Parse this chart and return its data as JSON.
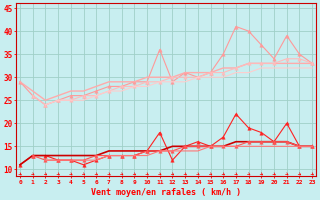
{
  "xlabel": "Vent moyen/en rafales ( km/h )",
  "bg_color": "#c8eef0",
  "grid_color": "#a0d0c8",
  "x": [
    0,
    1,
    2,
    3,
    4,
    5,
    6,
    7,
    8,
    9,
    10,
    11,
    12,
    13,
    14,
    15,
    16,
    17,
    18,
    19,
    20,
    21,
    22,
    23
  ],
  "lines": [
    {
      "y": [
        29,
        26,
        24,
        25,
        26,
        26,
        27,
        28,
        28,
        29,
        29,
        36,
        29,
        31,
        30,
        31,
        35,
        41,
        40,
        37,
        34,
        39,
        35,
        33
      ],
      "color": "#ff9999",
      "lw": 0.8,
      "marker": "^",
      "ms": 2.5
    },
    {
      "y": [
        29,
        27,
        25,
        26,
        27,
        27,
        28,
        29,
        29,
        29,
        30,
        30,
        30,
        31,
        31,
        31,
        32,
        32,
        33,
        33,
        33,
        33,
        33,
        33
      ],
      "color": "#ffaaaa",
      "lw": 1.0,
      "marker": null,
      "ms": 0
    },
    {
      "y": [
        null,
        26,
        24,
        25,
        25,
        26,
        26,
        27,
        28,
        28,
        29,
        29,
        30,
        30,
        30,
        31,
        31,
        32,
        33,
        33,
        33,
        34,
        34,
        33
      ],
      "color": "#ffbbbb",
      "lw": 0.8,
      "marker": "^",
      "ms": 2.5
    },
    {
      "y": [
        null,
        null,
        24,
        25,
        25,
        25,
        26,
        27,
        27,
        28,
        28,
        29,
        29,
        29,
        30,
        30,
        30,
        31,
        31,
        32,
        32,
        32,
        32,
        32
      ],
      "color": "#ffcccc",
      "lw": 0.8,
      "marker": null,
      "ms": 0
    },
    {
      "y": [
        11,
        13,
        13,
        12,
        12,
        11,
        12,
        13,
        13,
        13,
        14,
        18,
        12,
        15,
        16,
        15,
        17,
        22,
        19,
        18,
        16,
        20,
        15,
        15
      ],
      "color": "#ff2222",
      "lw": 0.8,
      "marker": "^",
      "ms": 2.5
    },
    {
      "y": [
        11,
        13,
        13,
        13,
        13,
        13,
        13,
        14,
        14,
        14,
        14,
        14,
        15,
        15,
        15,
        15,
        15,
        16,
        16,
        16,
        16,
        16,
        15,
        15
      ],
      "color": "#cc0000",
      "lw": 1.2,
      "marker": null,
      "ms": 0
    },
    {
      "y": [
        null,
        13,
        12,
        12,
        12,
        12,
        13,
        13,
        13,
        13,
        14,
        14,
        14,
        15,
        15,
        15,
        15,
        15,
        16,
        16,
        16,
        16,
        15,
        15
      ],
      "color": "#ff5555",
      "lw": 0.8,
      "marker": "^",
      "ms": 2.5
    },
    {
      "y": [
        null,
        null,
        12,
        12,
        12,
        12,
        12,
        13,
        13,
        13,
        13,
        14,
        14,
        14,
        14,
        15,
        15,
        15,
        15,
        15,
        15,
        15,
        15,
        15
      ],
      "color": "#ff7777",
      "lw": 0.8,
      "marker": null,
      "ms": 0
    }
  ],
  "ylim": [
    8.5,
    46
  ],
  "yticks": [
    10,
    15,
    20,
    25,
    30,
    35,
    40,
    45
  ],
  "xlim": [
    -0.3,
    23.3
  ],
  "tick_color": "#ff0000",
  "label_color": "#ff0000",
  "spine_color": "#cc0000"
}
